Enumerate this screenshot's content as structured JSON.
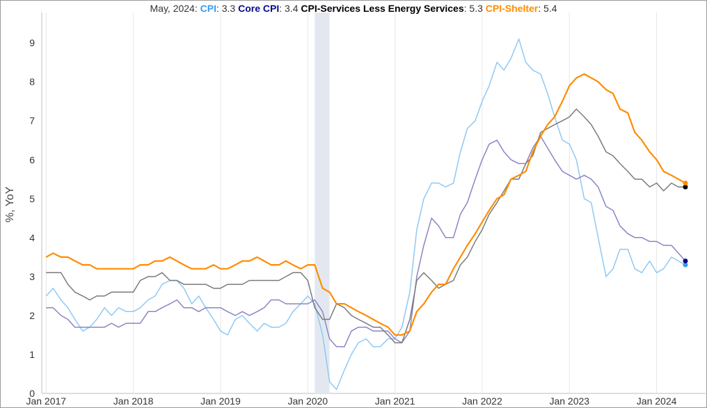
{
  "chart_data": {
    "type": "line",
    "header": {
      "date": "May, 2024:",
      "values": [
        {
          "name": "CPI",
          "value": "3.3",
          "color": "#3b9be8"
        },
        {
          "name": "Core CPI",
          "value": "3.4",
          "color": "#0a0a8c"
        },
        {
          "name": "CPI-Services Less Energy Services",
          "value": "5.3",
          "color": "#000000"
        },
        {
          "name": "CPI-Shelter",
          "value": "5.4",
          "color": "#ff8c00"
        }
      ]
    },
    "ylabel": "%, YoY",
    "ylim": [
      0,
      9.6
    ],
    "yticks": [
      "0",
      "1",
      "2",
      "3",
      "4",
      "5",
      "6",
      "7",
      "8",
      "9"
    ],
    "xticks": [
      {
        "label": "Jan 2017",
        "x": 2017.0
      },
      {
        "label": "Jan 2018",
        "x": 2018.0
      },
      {
        "label": "Jan 2019",
        "x": 2019.0
      },
      {
        "label": "Jan 2020",
        "x": 2020.0
      },
      {
        "label": "Jan 2021",
        "x": 2021.0
      },
      {
        "label": "Jan 2022",
        "x": 2022.0
      },
      {
        "label": "Jan 2023",
        "x": 2023.0
      },
      {
        "label": "Jan 2024",
        "x": 2024.0
      }
    ],
    "xlim": [
      2016.95,
      2024.45
    ],
    "recession": [
      2020.08,
      2020.25
    ],
    "grid": "vertical",
    "series": [
      {
        "name": "CPI",
        "color": "#8ec9f5",
        "endpoint_color": "#3b9be8",
        "x": [
          2017.0,
          2017.08,
          2017.17,
          2017.25,
          2017.33,
          2017.42,
          2017.5,
          2017.58,
          2017.67,
          2017.75,
          2017.83,
          2017.92,
          2018.0,
          2018.08,
          2018.17,
          2018.25,
          2018.33,
          2018.42,
          2018.5,
          2018.58,
          2018.67,
          2018.75,
          2018.83,
          2018.92,
          2019.0,
          2019.08,
          2019.17,
          2019.25,
          2019.33,
          2019.42,
          2019.5,
          2019.58,
          2019.67,
          2019.75,
          2019.83,
          2019.92,
          2020.0,
          2020.08,
          2020.17,
          2020.25,
          2020.33,
          2020.42,
          2020.5,
          2020.58,
          2020.67,
          2020.75,
          2020.83,
          2020.92,
          2021.0,
          2021.08,
          2021.17,
          2021.25,
          2021.33,
          2021.42,
          2021.5,
          2021.58,
          2021.67,
          2021.75,
          2021.83,
          2021.92,
          2022.0,
          2022.08,
          2022.17,
          2022.25,
          2022.33,
          2022.42,
          2022.5,
          2022.58,
          2022.67,
          2022.75,
          2022.83,
          2022.92,
          2023.0,
          2023.08,
          2023.17,
          2023.25,
          2023.33,
          2023.42,
          2023.5,
          2023.58,
          2023.67,
          2023.75,
          2023.83,
          2023.92,
          2024.0,
          2024.08,
          2024.17,
          2024.25,
          2024.33
        ],
        "values": [
          2.5,
          2.7,
          2.4,
          2.2,
          1.9,
          1.6,
          1.7,
          1.9,
          2.2,
          2.0,
          2.2,
          2.1,
          2.1,
          2.2,
          2.4,
          2.5,
          2.8,
          2.9,
          2.9,
          2.7,
          2.3,
          2.5,
          2.2,
          1.9,
          1.6,
          1.5,
          1.9,
          2.0,
          1.8,
          1.6,
          1.8,
          1.7,
          1.7,
          1.8,
          2.1,
          2.3,
          2.5,
          2.3,
          1.5,
          0.3,
          0.1,
          0.6,
          1.0,
          1.3,
          1.4,
          1.2,
          1.2,
          1.4,
          1.4,
          1.7,
          2.6,
          4.2,
          5.0,
          5.4,
          5.4,
          5.3,
          5.4,
          6.2,
          6.8,
          7.0,
          7.5,
          7.9,
          8.5,
          8.3,
          8.6,
          9.1,
          8.5,
          8.3,
          8.2,
          7.7,
          7.1,
          6.5,
          6.4,
          6.0,
          5.0,
          4.9,
          4.0,
          3.0,
          3.2,
          3.7,
          3.7,
          3.2,
          3.1,
          3.4,
          3.1,
          3.2,
          3.5,
          3.4,
          3.3
        ]
      },
      {
        "name": "Core CPI",
        "color": "#8b84c4",
        "endpoint_color": "#0a0a8c",
        "x": [
          2017.0,
          2017.08,
          2017.17,
          2017.25,
          2017.33,
          2017.42,
          2017.5,
          2017.58,
          2017.67,
          2017.75,
          2017.83,
          2017.92,
          2018.0,
          2018.08,
          2018.17,
          2018.25,
          2018.33,
          2018.42,
          2018.5,
          2018.58,
          2018.67,
          2018.75,
          2018.83,
          2018.92,
          2019.0,
          2019.08,
          2019.17,
          2019.25,
          2019.33,
          2019.42,
          2019.5,
          2019.58,
          2019.67,
          2019.75,
          2019.83,
          2019.92,
          2020.0,
          2020.08,
          2020.17,
          2020.25,
          2020.33,
          2020.42,
          2020.5,
          2020.58,
          2020.67,
          2020.75,
          2020.83,
          2020.92,
          2021.0,
          2021.08,
          2021.17,
          2021.25,
          2021.33,
          2021.42,
          2021.5,
          2021.58,
          2021.67,
          2021.75,
          2021.83,
          2021.92,
          2022.0,
          2022.08,
          2022.17,
          2022.25,
          2022.33,
          2022.42,
          2022.5,
          2022.58,
          2022.67,
          2022.75,
          2022.83,
          2022.92,
          2023.0,
          2023.08,
          2023.17,
          2023.25,
          2023.33,
          2023.42,
          2023.5,
          2023.58,
          2023.67,
          2023.75,
          2023.83,
          2023.92,
          2024.0,
          2024.08,
          2024.17,
          2024.25,
          2024.33
        ],
        "values": [
          2.2,
          2.2,
          2.0,
          1.9,
          1.7,
          1.7,
          1.7,
          1.7,
          1.7,
          1.8,
          1.7,
          1.8,
          1.8,
          1.8,
          2.1,
          2.1,
          2.2,
          2.3,
          2.4,
          2.2,
          2.2,
          2.1,
          2.2,
          2.2,
          2.2,
          2.1,
          2.0,
          2.1,
          2.0,
          2.1,
          2.2,
          2.4,
          2.4,
          2.3,
          2.3,
          2.3,
          2.3,
          2.4,
          2.1,
          1.4,
          1.2,
          1.2,
          1.6,
          1.7,
          1.7,
          1.6,
          1.6,
          1.6,
          1.4,
          1.3,
          1.6,
          3.0,
          3.8,
          4.5,
          4.3,
          4.0,
          4.0,
          4.6,
          4.9,
          5.5,
          6.0,
          6.4,
          6.5,
          6.2,
          6.0,
          5.9,
          5.9,
          6.3,
          6.6,
          6.3,
          6.0,
          5.7,
          5.6,
          5.5,
          5.6,
          5.5,
          5.3,
          4.8,
          4.7,
          4.3,
          4.1,
          4.0,
          4.0,
          3.9,
          3.9,
          3.8,
          3.8,
          3.6,
          3.4
        ]
      },
      {
        "name": "CPI-Services Less Energy Services",
        "color": "#7a7a7a",
        "endpoint_color": "#000000",
        "x": [
          2017.0,
          2017.08,
          2017.17,
          2017.25,
          2017.33,
          2017.42,
          2017.5,
          2017.58,
          2017.67,
          2017.75,
          2017.83,
          2017.92,
          2018.0,
          2018.08,
          2018.17,
          2018.25,
          2018.33,
          2018.42,
          2018.5,
          2018.58,
          2018.67,
          2018.75,
          2018.83,
          2018.92,
          2019.0,
          2019.08,
          2019.17,
          2019.25,
          2019.33,
          2019.42,
          2019.5,
          2019.58,
          2019.67,
          2019.75,
          2019.83,
          2019.92,
          2020.0,
          2020.08,
          2020.17,
          2020.25,
          2020.33,
          2020.42,
          2020.5,
          2020.58,
          2020.67,
          2020.75,
          2020.83,
          2020.92,
          2021.0,
          2021.08,
          2021.17,
          2021.25,
          2021.33,
          2021.42,
          2021.5,
          2021.58,
          2021.67,
          2021.75,
          2021.83,
          2021.92,
          2022.0,
          2022.08,
          2022.17,
          2022.25,
          2022.33,
          2022.42,
          2022.5,
          2022.58,
          2022.67,
          2022.75,
          2022.83,
          2022.92,
          2023.0,
          2023.08,
          2023.17,
          2023.25,
          2023.33,
          2023.42,
          2023.5,
          2023.58,
          2023.67,
          2023.75,
          2023.83,
          2023.92,
          2024.0,
          2024.08,
          2024.17,
          2024.25,
          2024.33
        ],
        "values": [
          3.1,
          3.1,
          3.1,
          2.8,
          2.6,
          2.5,
          2.4,
          2.5,
          2.5,
          2.6,
          2.6,
          2.6,
          2.6,
          2.9,
          3.0,
          3.0,
          3.1,
          2.9,
          2.9,
          2.8,
          2.8,
          2.8,
          2.8,
          2.7,
          2.7,
          2.8,
          2.8,
          2.8,
          2.9,
          2.9,
          2.9,
          2.9,
          2.9,
          3.0,
          3.1,
          3.1,
          2.9,
          2.2,
          1.9,
          1.9,
          2.3,
          2.2,
          2.0,
          1.9,
          1.8,
          1.7,
          1.7,
          1.5,
          1.3,
          1.3,
          1.9,
          2.9,
          3.1,
          2.9,
          2.7,
          2.8,
          2.9,
          3.3,
          3.5,
          3.9,
          4.2,
          4.6,
          4.9,
          5.2,
          5.5,
          5.5,
          5.9,
          6.1,
          6.7,
          6.8,
          6.9,
          7.0,
          7.1,
          7.3,
          7.1,
          6.9,
          6.6,
          6.2,
          6.1,
          5.9,
          5.7,
          5.5,
          5.5,
          5.3,
          5.4,
          5.2,
          5.4,
          5.3,
          5.3
        ]
      },
      {
        "name": "CPI-Shelter",
        "color": "#ff8c00",
        "endpoint_color": "#ff8c00",
        "x": [
          2017.0,
          2017.08,
          2017.17,
          2017.25,
          2017.33,
          2017.42,
          2017.5,
          2017.58,
          2017.67,
          2017.75,
          2017.83,
          2017.92,
          2018.0,
          2018.08,
          2018.17,
          2018.25,
          2018.33,
          2018.42,
          2018.5,
          2018.58,
          2018.67,
          2018.75,
          2018.83,
          2018.92,
          2019.0,
          2019.08,
          2019.17,
          2019.25,
          2019.33,
          2019.42,
          2019.5,
          2019.58,
          2019.67,
          2019.75,
          2019.83,
          2019.92,
          2020.0,
          2020.08,
          2020.17,
          2020.25,
          2020.33,
          2020.42,
          2020.5,
          2020.58,
          2020.67,
          2020.75,
          2020.83,
          2020.92,
          2021.0,
          2021.08,
          2021.17,
          2021.25,
          2021.33,
          2021.42,
          2021.5,
          2021.58,
          2021.67,
          2021.75,
          2021.83,
          2021.92,
          2022.0,
          2022.08,
          2022.17,
          2022.25,
          2022.33,
          2022.42,
          2022.5,
          2022.58,
          2022.67,
          2022.75,
          2022.83,
          2022.92,
          2023.0,
          2023.08,
          2023.17,
          2023.25,
          2023.33,
          2023.42,
          2023.5,
          2023.58,
          2023.67,
          2023.75,
          2023.83,
          2023.92,
          2024.0,
          2024.08,
          2024.17,
          2024.25,
          2024.33
        ],
        "values": [
          3.5,
          3.6,
          3.5,
          3.5,
          3.4,
          3.3,
          3.3,
          3.2,
          3.2,
          3.2,
          3.2,
          3.2,
          3.2,
          3.3,
          3.3,
          3.4,
          3.4,
          3.5,
          3.4,
          3.3,
          3.2,
          3.2,
          3.2,
          3.3,
          3.2,
          3.2,
          3.3,
          3.4,
          3.4,
          3.5,
          3.4,
          3.3,
          3.3,
          3.4,
          3.3,
          3.2,
          3.3,
          3.3,
          2.7,
          2.6,
          2.3,
          2.3,
          2.2,
          2.1,
          2.0,
          1.9,
          1.8,
          1.7,
          1.5,
          1.5,
          1.6,
          2.1,
          2.3,
          2.6,
          2.8,
          2.8,
          3.2,
          3.5,
          3.8,
          4.1,
          4.4,
          4.7,
          5.0,
          5.1,
          5.5,
          5.6,
          5.7,
          6.2,
          6.6,
          6.9,
          7.1,
          7.5,
          7.9,
          8.1,
          8.2,
          8.1,
          8.0,
          7.8,
          7.7,
          7.3,
          7.2,
          6.7,
          6.5,
          6.2,
          6.0,
          5.7,
          5.6,
          5.5,
          5.4
        ]
      }
    ]
  }
}
